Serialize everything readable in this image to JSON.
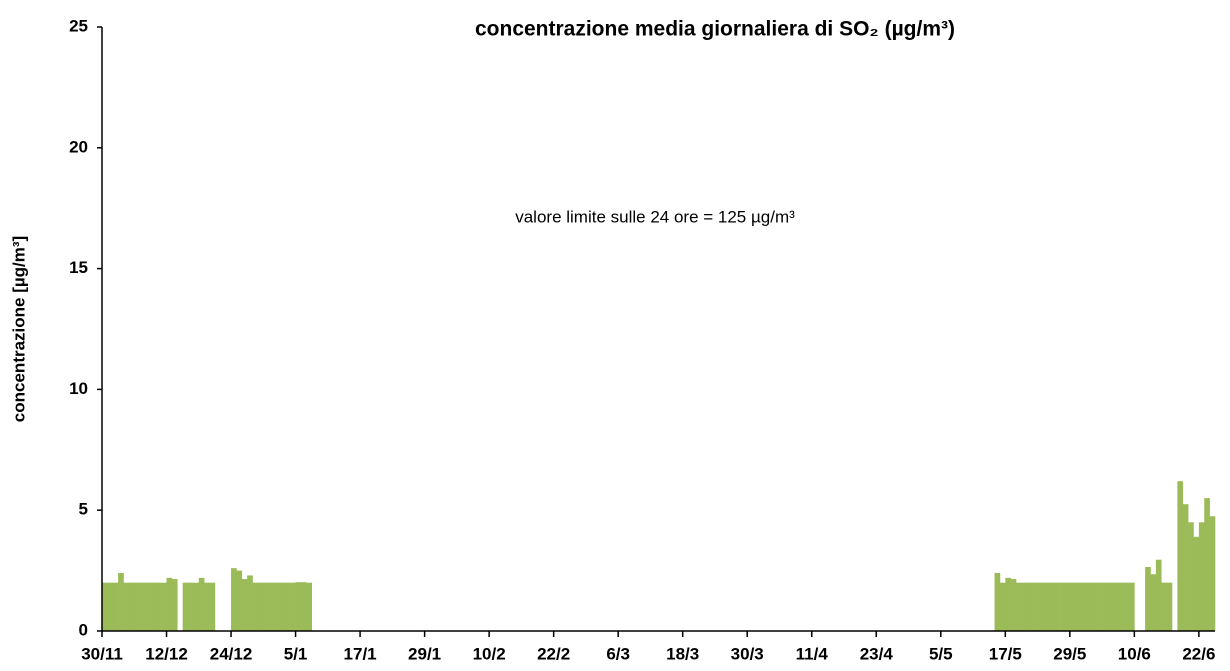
{
  "chart_data": {
    "type": "bar",
    "title": "concentrazione media giornaliera di SO₂ (µg/m³)",
    "y_label": "concentrazione [µg/m³]",
    "annotation": "valore limite sulle 24 ore = 125 µg/m³",
    "color": "#9bbb59",
    "ylim": [
      0,
      25
    ],
    "yticks": [
      0,
      5,
      10,
      15,
      20,
      25
    ],
    "categories": [
      "30/11",
      null,
      null,
      null,
      null,
      null,
      null,
      null,
      null,
      null,
      null,
      null,
      "12/12",
      null,
      null,
      null,
      null,
      null,
      null,
      null,
      null,
      null,
      null,
      null,
      "24/12",
      null,
      null,
      null,
      null,
      null,
      null,
      null,
      null,
      null,
      null,
      null,
      "5/1",
      null,
      null,
      null,
      null,
      null,
      null,
      null,
      null,
      null,
      null,
      null,
      "17/1",
      null,
      null,
      null,
      null,
      null,
      null,
      null,
      null,
      null,
      null,
      null,
      "29/1",
      null,
      null,
      null,
      null,
      null,
      null,
      null,
      null,
      null,
      null,
      null,
      "10/2",
      null,
      null,
      null,
      null,
      null,
      null,
      null,
      null,
      null,
      null,
      null,
      "22/2",
      null,
      null,
      null,
      null,
      null,
      null,
      null,
      null,
      null,
      null,
      null,
      "6/3",
      null,
      null,
      null,
      null,
      null,
      null,
      null,
      null,
      null,
      null,
      null,
      "18/3",
      null,
      null,
      null,
      null,
      null,
      null,
      null,
      null,
      null,
      null,
      null,
      "30/3",
      null,
      null,
      null,
      null,
      null,
      null,
      null,
      null,
      null,
      null,
      null,
      "11/4",
      null,
      null,
      null,
      null,
      null,
      null,
      null,
      null,
      null,
      null,
      null,
      "23/4",
      null,
      null,
      null,
      null,
      null,
      null,
      null,
      null,
      null,
      null,
      null,
      "5/5",
      null,
      null,
      null,
      null,
      null,
      null,
      null,
      null,
      null,
      null,
      null,
      "17/5",
      null,
      null,
      null,
      null,
      null,
      null,
      null,
      null,
      null,
      null,
      null,
      "29/5",
      null,
      null,
      null,
      null,
      null,
      null,
      null,
      null,
      null,
      null,
      null,
      "10/6",
      null,
      null,
      null,
      null,
      null,
      null,
      null,
      null,
      null,
      null,
      null,
      "22/6",
      null,
      null
    ],
    "values": [
      2,
      2,
      2,
      2.4,
      2,
      2,
      2,
      2,
      2,
      2,
      2,
      2,
      2.2,
      2.15,
      null,
      2,
      2,
      2,
      2.2,
      2,
      2,
      null,
      null,
      null,
      2.6,
      2.5,
      2.15,
      2.3,
      2,
      2,
      2,
      2,
      2,
      2,
      2,
      2,
      2.02,
      2.02,
      2,
      null,
      null,
      null,
      null,
      null,
      null,
      null,
      null,
      null,
      null,
      null,
      null,
      null,
      null,
      null,
      null,
      null,
      null,
      null,
      null,
      null,
      null,
      null,
      null,
      null,
      null,
      null,
      null,
      null,
      null,
      null,
      null,
      null,
      null,
      null,
      null,
      null,
      null,
      null,
      null,
      null,
      null,
      null,
      null,
      null,
      null,
      null,
      null,
      null,
      null,
      null,
      null,
      null,
      null,
      null,
      null,
      null,
      null,
      null,
      null,
      null,
      null,
      null,
      null,
      null,
      null,
      null,
      null,
      null,
      null,
      null,
      null,
      null,
      null,
      null,
      null,
      null,
      null,
      null,
      null,
      null,
      null,
      null,
      null,
      null,
      null,
      null,
      null,
      null,
      null,
      null,
      null,
      null,
      null,
      null,
      null,
      null,
      null,
      null,
      null,
      null,
      null,
      null,
      null,
      null,
      null,
      null,
      null,
      null,
      null,
      null,
      null,
      null,
      null,
      null,
      null,
      null,
      null,
      null,
      null,
      null,
      null,
      null,
      null,
      null,
      null,
      null,
      2.4,
      2,
      2.2,
      2.15,
      2,
      2,
      2,
      2,
      2,
      2,
      2,
      2,
      2,
      2,
      2,
      2,
      2,
      2,
      2,
      2,
      2,
      2,
      2,
      2,
      2,
      2,
      null,
      null,
      2.65,
      2.35,
      2.95,
      2,
      2,
      null,
      6.2,
      5.25,
      4.5,
      3.9,
      4.5,
      5.5,
      4.75
    ]
  }
}
